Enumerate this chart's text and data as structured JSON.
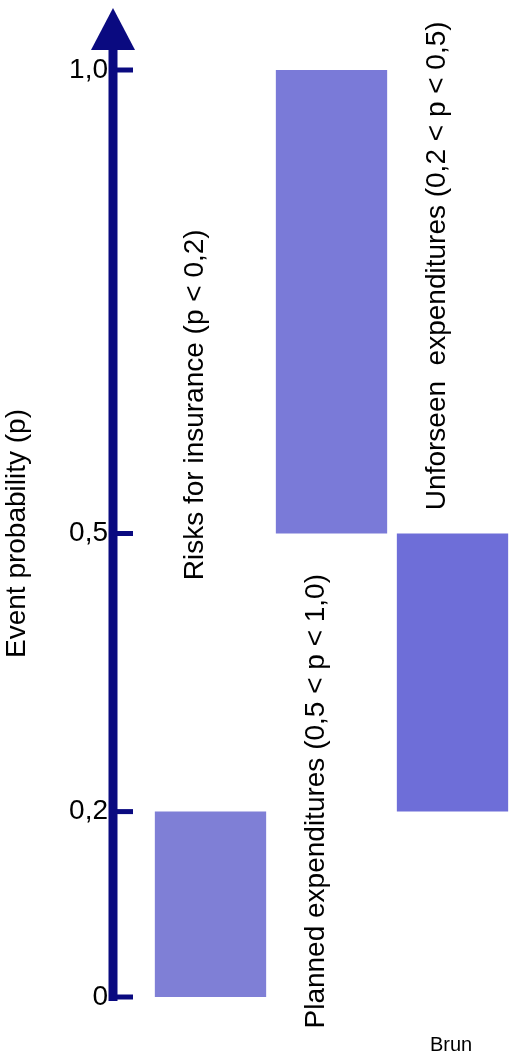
{
  "chart_data": {
    "type": "bar",
    "ylabel": "Event probability (p)",
    "categories": [
      "Risks for insurance (p < 0,2)",
      "Planned expenditures (0,5 < p < 1,0)",
      "Unforseen  expenditures (0,2 < p < 0,5)"
    ],
    "base": [
      0,
      0.5,
      0.2
    ],
    "values": [
      0.2,
      0.5,
      0.3
    ],
    "colors": [
      "#7f7fd6",
      "#7a7ad8",
      "#6e6ed8"
    ],
    "ylim": [
      0,
      1.0
    ],
    "yticks": [
      0,
      {
        "value": 0.2,
        "label": "0,2"
      },
      {
        "value": 0.5,
        "label": "0,5"
      },
      {
        "value": 1.0,
        "label": "1,0"
      }
    ],
    "grid": false,
    "legend": false,
    "annotations": [
      "Brun"
    ]
  }
}
